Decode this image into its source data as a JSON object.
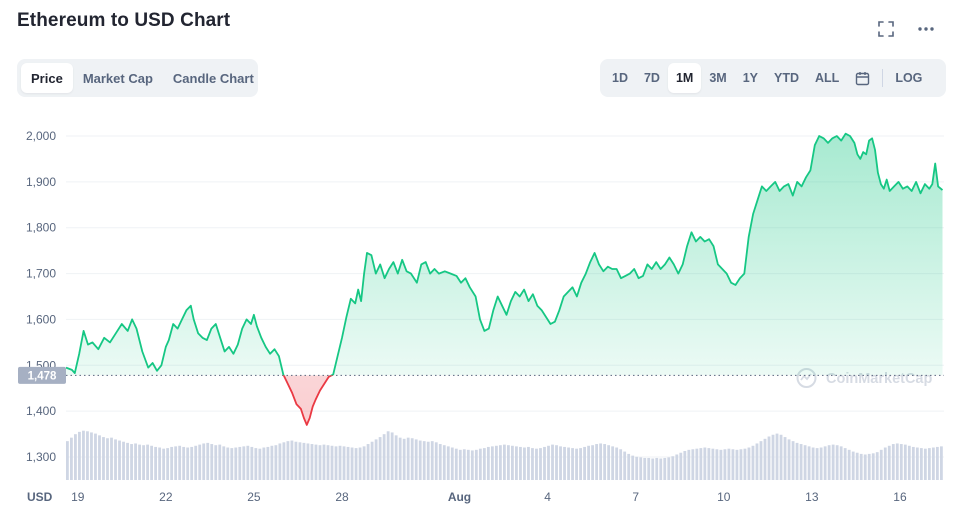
{
  "header": {
    "title": "Ethereum to USD Chart",
    "fullscreen_icon": "expand-icon",
    "more_icon": "more-horizontal-icon"
  },
  "chart_tabs": [
    {
      "label": "Price",
      "active": true
    },
    {
      "label": "Market Cap",
      "active": false
    },
    {
      "label": "Candle Chart",
      "active": false
    }
  ],
  "ranges": [
    {
      "label": "1D",
      "active": false
    },
    {
      "label": "7D",
      "active": false
    },
    {
      "label": "1M",
      "active": true
    },
    {
      "label": "3M",
      "active": false
    },
    {
      "label": "1Y",
      "active": false
    },
    {
      "label": "YTD",
      "active": false
    },
    {
      "label": "ALL",
      "active": false
    }
  ],
  "calendar_icon": "calendar-icon",
  "log_label": "LOG",
  "watermark": "CoinMarketCap",
  "colors": {
    "up": "#16c784",
    "down": "#ea3943",
    "grid": "#eff2f5",
    "volume": "#cfd6e4",
    "label_bg": "#a6b0c3"
  },
  "chart_data": {
    "type": "line",
    "currency_label": "USD",
    "reference_price": 1478,
    "reference_label": "1,478",
    "y_ticks": [
      {
        "value": 2000,
        "label": "2,000"
      },
      {
        "value": 1900,
        "label": "1,900"
      },
      {
        "value": 1800,
        "label": "1,800"
      },
      {
        "value": 1700,
        "label": "1,700"
      },
      {
        "value": 1600,
        "label": "1,600"
      },
      {
        "value": 1500,
        "label": "1,500"
      },
      {
        "value": 1400,
        "label": "1,400"
      },
      {
        "value": 1300,
        "label": "1,300"
      }
    ],
    "x_ticks": [
      {
        "day": 19,
        "label": "19"
      },
      {
        "day": 22,
        "label": "22"
      },
      {
        "day": 25,
        "label": "25"
      },
      {
        "day": 28,
        "label": "28"
      },
      {
        "day": 32,
        "label": "Aug",
        "bold": true
      },
      {
        "day": 35,
        "label": "4"
      },
      {
        "day": 38,
        "label": "7"
      },
      {
        "day": 41,
        "label": "10"
      },
      {
        "day": 44,
        "label": "13"
      },
      {
        "day": 47,
        "label": "16"
      }
    ],
    "x_range": [
      18.6,
      48.5
    ],
    "price_y_range": [
      1300,
      2050
    ],
    "series": [
      {
        "points": [
          [
            18.6,
            1495
          ],
          [
            18.8,
            1490
          ],
          [
            18.9,
            1483
          ],
          [
            19.05,
            1525
          ],
          [
            19.2,
            1575
          ],
          [
            19.35,
            1545
          ],
          [
            19.5,
            1550
          ],
          [
            19.7,
            1535
          ],
          [
            19.9,
            1560
          ],
          [
            20.1,
            1550
          ],
          [
            20.3,
            1570
          ],
          [
            20.5,
            1590
          ],
          [
            20.7,
            1575
          ],
          [
            20.85,
            1600
          ],
          [
            21.0,
            1580
          ],
          [
            21.2,
            1530
          ],
          [
            21.4,
            1495
          ],
          [
            21.55,
            1505
          ],
          [
            21.7,
            1488
          ],
          [
            21.85,
            1500
          ],
          [
            22.0,
            1540
          ],
          [
            22.1,
            1555
          ],
          [
            22.25,
            1590
          ],
          [
            22.4,
            1580
          ],
          [
            22.55,
            1600
          ],
          [
            22.7,
            1620
          ],
          [
            22.85,
            1630
          ],
          [
            22.95,
            1600
          ],
          [
            23.1,
            1570
          ],
          [
            23.25,
            1560
          ],
          [
            23.4,
            1555
          ],
          [
            23.55,
            1580
          ],
          [
            23.7,
            1590
          ],
          [
            23.85,
            1560
          ],
          [
            24.0,
            1530
          ],
          [
            24.15,
            1540
          ],
          [
            24.3,
            1525
          ],
          [
            24.45,
            1545
          ],
          [
            24.6,
            1580
          ],
          [
            24.75,
            1600
          ],
          [
            24.9,
            1590
          ],
          [
            25.0,
            1610
          ],
          [
            25.1,
            1585
          ],
          [
            25.25,
            1560
          ],
          [
            25.4,
            1540
          ],
          [
            25.55,
            1525
          ],
          [
            25.7,
            1535
          ],
          [
            25.85,
            1520
          ],
          [
            26.0,
            1480
          ],
          [
            26.15,
            1460
          ],
          [
            26.3,
            1440
          ],
          [
            26.45,
            1415
          ],
          [
            26.6,
            1405
          ],
          [
            26.7,
            1385
          ],
          [
            26.8,
            1370
          ],
          [
            26.9,
            1385
          ],
          [
            27.0,
            1410
          ],
          [
            27.1,
            1425
          ],
          [
            27.25,
            1445
          ],
          [
            27.4,
            1460
          ],
          [
            27.55,
            1475
          ],
          [
            27.7,
            1480
          ],
          [
            27.85,
            1520
          ],
          [
            28.0,
            1560
          ],
          [
            28.15,
            1605
          ],
          [
            28.3,
            1645
          ],
          [
            28.45,
            1635
          ],
          [
            28.55,
            1665
          ],
          [
            28.65,
            1640
          ],
          [
            28.75,
            1700
          ],
          [
            28.85,
            1745
          ],
          [
            29.0,
            1740
          ],
          [
            29.15,
            1700
          ],
          [
            29.3,
            1720
          ],
          [
            29.45,
            1690
          ],
          [
            29.6,
            1710
          ],
          [
            29.75,
            1725
          ],
          [
            29.9,
            1700
          ],
          [
            30.05,
            1730
          ],
          [
            30.2,
            1705
          ],
          [
            30.35,
            1700
          ],
          [
            30.55,
            1680
          ],
          [
            30.7,
            1720
          ],
          [
            30.85,
            1725
          ],
          [
            31.0,
            1700
          ],
          [
            31.15,
            1710
          ],
          [
            31.3,
            1700
          ],
          [
            31.5,
            1705
          ],
          [
            31.7,
            1700
          ],
          [
            31.9,
            1695
          ],
          [
            32.05,
            1680
          ],
          [
            32.2,
            1690
          ],
          [
            32.35,
            1670
          ],
          [
            32.55,
            1650
          ],
          [
            32.7,
            1600
          ],
          [
            32.85,
            1575
          ],
          [
            33.0,
            1580
          ],
          [
            33.15,
            1620
          ],
          [
            33.3,
            1650
          ],
          [
            33.45,
            1630
          ],
          [
            33.6,
            1610
          ],
          [
            33.75,
            1640
          ],
          [
            33.9,
            1660
          ],
          [
            34.05,
            1650
          ],
          [
            34.2,
            1665
          ],
          [
            34.35,
            1640
          ],
          [
            34.5,
            1655
          ],
          [
            34.65,
            1630
          ],
          [
            34.8,
            1620
          ],
          [
            34.95,
            1605
          ],
          [
            35.1,
            1590
          ],
          [
            35.25,
            1595
          ],
          [
            35.4,
            1620
          ],
          [
            35.55,
            1650
          ],
          [
            35.7,
            1660
          ],
          [
            35.85,
            1670
          ],
          [
            36.0,
            1650
          ],
          [
            36.15,
            1680
          ],
          [
            36.3,
            1700
          ],
          [
            36.45,
            1725
          ],
          [
            36.6,
            1745
          ],
          [
            36.75,
            1720
          ],
          [
            36.9,
            1705
          ],
          [
            37.05,
            1715
          ],
          [
            37.2,
            1710
          ],
          [
            37.35,
            1710
          ],
          [
            37.5,
            1690
          ],
          [
            37.65,
            1695
          ],
          [
            37.8,
            1700
          ],
          [
            37.95,
            1710
          ],
          [
            38.1,
            1690
          ],
          [
            38.25,
            1695
          ],
          [
            38.4,
            1720
          ],
          [
            38.55,
            1710
          ],
          [
            38.7,
            1725
          ],
          [
            38.85,
            1710
          ],
          [
            39.0,
            1720
          ],
          [
            39.15,
            1735
          ],
          [
            39.3,
            1720
          ],
          [
            39.45,
            1700
          ],
          [
            39.6,
            1720
          ],
          [
            39.75,
            1760
          ],
          [
            39.9,
            1790
          ],
          [
            40.05,
            1770
          ],
          [
            40.2,
            1780
          ],
          [
            40.35,
            1770
          ],
          [
            40.5,
            1775
          ],
          [
            40.65,
            1760
          ],
          [
            40.8,
            1720
          ],
          [
            40.95,
            1710
          ],
          [
            41.1,
            1700
          ],
          [
            41.25,
            1680
          ],
          [
            41.4,
            1675
          ],
          [
            41.55,
            1690
          ],
          [
            41.7,
            1700
          ],
          [
            41.85,
            1780
          ],
          [
            42.0,
            1830
          ],
          [
            42.15,
            1860
          ],
          [
            42.3,
            1890
          ],
          [
            42.45,
            1880
          ],
          [
            42.6,
            1890
          ],
          [
            42.75,
            1900
          ],
          [
            42.9,
            1880
          ],
          [
            43.05,
            1890
          ],
          [
            43.2,
            1895
          ],
          [
            43.35,
            1870
          ],
          [
            43.5,
            1900
          ],
          [
            43.65,
            1890
          ],
          [
            43.8,
            1910
          ],
          [
            43.95,
            1925
          ],
          [
            44.1,
            1980
          ],
          [
            44.25,
            2000
          ],
          [
            44.4,
            1995
          ],
          [
            44.55,
            1985
          ],
          [
            44.7,
            1995
          ],
          [
            44.85,
            2000
          ],
          [
            45.0,
            1990
          ],
          [
            45.15,
            2005
          ],
          [
            45.3,
            2000
          ],
          [
            45.45,
            1985
          ],
          [
            45.55,
            1960
          ],
          [
            45.65,
            1950
          ],
          [
            45.75,
            1965
          ],
          [
            45.85,
            1960
          ],
          [
            45.95,
            1990
          ],
          [
            46.05,
            1995
          ],
          [
            46.15,
            1970
          ],
          [
            46.25,
            1920
          ],
          [
            46.35,
            1895
          ],
          [
            46.45,
            1885
          ],
          [
            46.55,
            1905
          ],
          [
            46.65,
            1880
          ],
          [
            46.8,
            1890
          ],
          [
            46.95,
            1900
          ],
          [
            47.1,
            1885
          ],
          [
            47.25,
            1890
          ],
          [
            47.4,
            1880
          ],
          [
            47.55,
            1900
          ],
          [
            47.7,
            1875
          ],
          [
            47.85,
            1895
          ],
          [
            48.0,
            1885
          ],
          [
            48.1,
            1895
          ],
          [
            48.2,
            1940
          ],
          [
            48.3,
            1890
          ],
          [
            48.45,
            1882
          ]
        ]
      }
    ],
    "volume": [
      0.67,
      0.73,
      0.79,
      0.83,
      0.85,
      0.84,
      0.82,
      0.8,
      0.77,
      0.74,
      0.72,
      0.73,
      0.7,
      0.68,
      0.66,
      0.64,
      0.62,
      0.63,
      0.61,
      0.6,
      0.61,
      0.59,
      0.57,
      0.56,
      0.54,
      0.55,
      0.57,
      0.58,
      0.59,
      0.57,
      0.56,
      0.57,
      0.59,
      0.61,
      0.63,
      0.64,
      0.62,
      0.6,
      0.61,
      0.58,
      0.56,
      0.55,
      0.56,
      0.57,
      0.58,
      0.59,
      0.57,
      0.55,
      0.54,
      0.56,
      0.57,
      0.59,
      0.6,
      0.63,
      0.65,
      0.67,
      0.68,
      0.66,
      0.65,
      0.64,
      0.63,
      0.62,
      0.61,
      0.6,
      0.61,
      0.6,
      0.59,
      0.58,
      0.59,
      0.58,
      0.57,
      0.56,
      0.55,
      0.56,
      0.58,
      0.62,
      0.66,
      0.7,
      0.74,
      0.79,
      0.84,
      0.82,
      0.77,
      0.73,
      0.71,
      0.73,
      0.72,
      0.7,
      0.68,
      0.67,
      0.66,
      0.67,
      0.65,
      0.62,
      0.6,
      0.58,
      0.56,
      0.54,
      0.52,
      0.53,
      0.52,
      0.51,
      0.52,
      0.54,
      0.55,
      0.57,
      0.58,
      0.59,
      0.6,
      0.61,
      0.6,
      0.59,
      0.58,
      0.57,
      0.56,
      0.57,
      0.55,
      0.54,
      0.55,
      0.57,
      0.59,
      0.61,
      0.6,
      0.58,
      0.57,
      0.56,
      0.55,
      0.54,
      0.55,
      0.57,
      0.59,
      0.6,
      0.62,
      0.63,
      0.62,
      0.6,
      0.58,
      0.56,
      0.53,
      0.49,
      0.45,
      0.42,
      0.4,
      0.39,
      0.38,
      0.38,
      0.37,
      0.38,
      0.37,
      0.38,
      0.39,
      0.41,
      0.44,
      0.47,
      0.5,
      0.52,
      0.53,
      0.54,
      0.55,
      0.56,
      0.55,
      0.54,
      0.53,
      0.52,
      0.53,
      0.54,
      0.53,
      0.52,
      0.53,
      0.54,
      0.56,
      0.59,
      0.63,
      0.67,
      0.71,
      0.75,
      0.78,
      0.8,
      0.78,
      0.74,
      0.7,
      0.67,
      0.64,
      0.62,
      0.6,
      0.58,
      0.56,
      0.55,
      0.56,
      0.58,
      0.6,
      0.61,
      0.6,
      0.58,
      0.55,
      0.52,
      0.49,
      0.47,
      0.45,
      0.44,
      0.45,
      0.46,
      0.48,
      0.52,
      0.56,
      0.59,
      0.62,
      0.63,
      0.62,
      0.61,
      0.59,
      0.57,
      0.56,
      0.55,
      0.54,
      0.55,
      0.56,
      0.57,
      0.58
    ]
  }
}
